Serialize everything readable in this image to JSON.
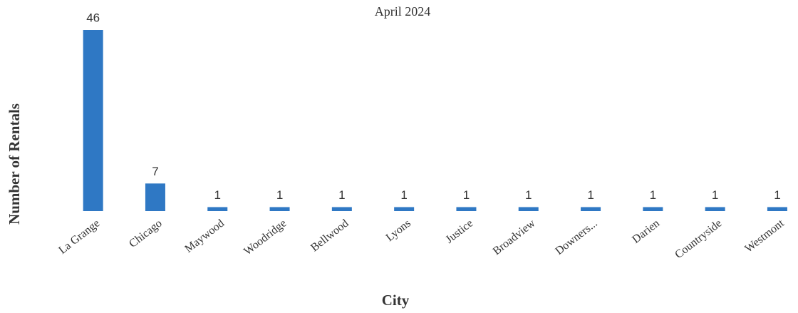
{
  "chart_data": {
    "type": "bar",
    "subtitle": "April 2024",
    "x_label": "City",
    "y_label": "Number of Rentals",
    "categories": [
      "La Grange",
      "Chicago",
      "Maywood",
      "Woodridge",
      "Bellwood",
      "Lyons",
      "Justice",
      "Broadview",
      "Downers...",
      "Darien",
      "Countryside",
      "Westmont"
    ],
    "values": [
      46,
      7,
      1,
      1,
      1,
      1,
      1,
      1,
      1,
      1,
      1,
      1
    ],
    "color": "#2f78c4",
    "ylim": [
      0,
      46
    ],
    "grid": false
  }
}
